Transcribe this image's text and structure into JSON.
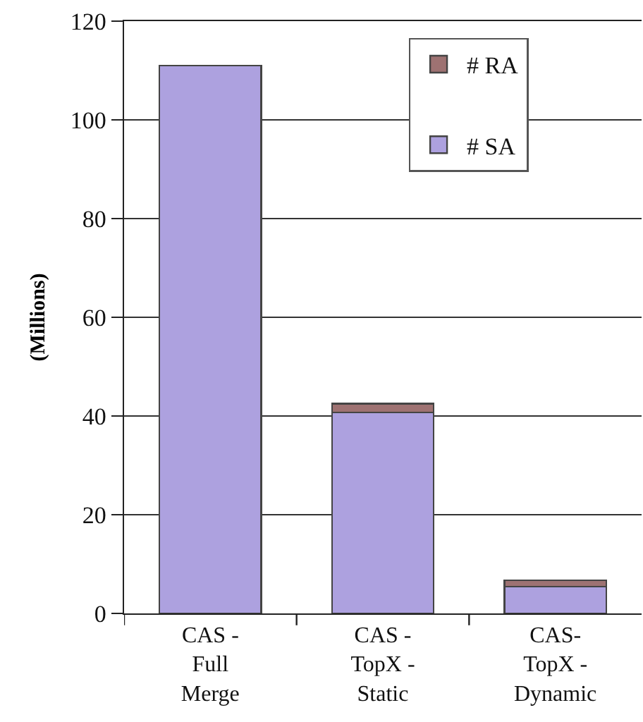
{
  "chart_data": {
    "type": "bar",
    "ylabel": "(Millions)",
    "categories": [
      "CAS - Full Merge",
      "CAS - TopX - Static",
      "CAS- TopX - Dynamic"
    ],
    "series": [
      {
        "name": "# SA",
        "color": "#ada1df",
        "values": [
          111,
          40.7,
          5.4
        ]
      },
      {
        "name": "# RA",
        "color": "#9e7272",
        "values": [
          null,
          1.8,
          1.3
        ]
      }
    ],
    "stacked": true,
    "ylim": [
      0,
      120
    ],
    "yticks": [
      0,
      20,
      40,
      60,
      80,
      100,
      120
    ],
    "grid": "y",
    "legend": "top right"
  }
}
